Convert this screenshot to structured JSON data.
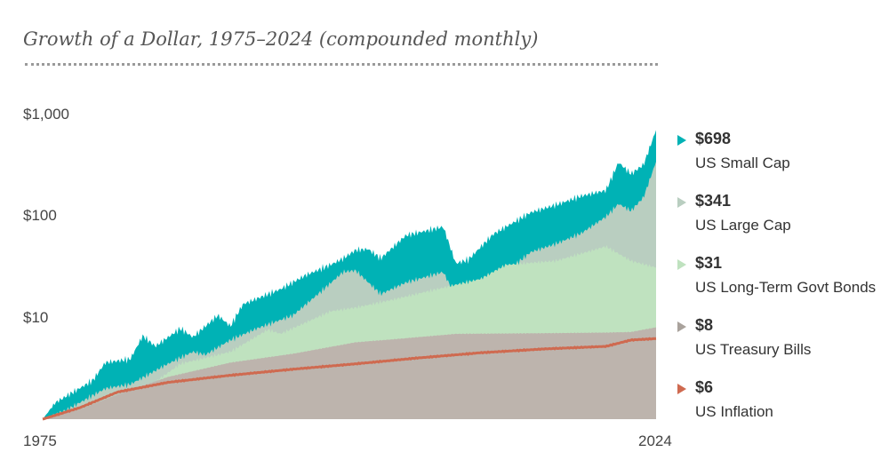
{
  "chart_data": {
    "type": "area",
    "title": "Growth of a Dollar, 1975–2024 (compounded monthly)",
    "x_start_label": "1975",
    "x_end_label": "2024",
    "x_range": [
      1975,
      2024
    ],
    "y_scale": "log",
    "ylim": [
      1,
      1000
    ],
    "y_tick_labels": [
      "$1,000",
      "$100",
      "$10"
    ],
    "y_tick_values": [
      1000,
      100,
      10
    ],
    "series": [
      {
        "name": "US Small Cap",
        "final_label": "$698",
        "final_value": 698,
        "color": "#00b2b5",
        "points": [
          [
            1975,
            1
          ],
          [
            1976,
            1.45
          ],
          [
            1979,
            2.4
          ],
          [
            1980,
            3.6
          ],
          [
            1982,
            3.9
          ],
          [
            1983,
            6.6
          ],
          [
            1984,
            5.2
          ],
          [
            1986,
            7.8
          ],
          [
            1987,
            6.4
          ],
          [
            1989,
            10.5
          ],
          [
            1990,
            8.2
          ],
          [
            1991,
            13.5
          ],
          [
            1994,
            19
          ],
          [
            1996,
            26
          ],
          [
            1998,
            33
          ],
          [
            1999,
            38
          ],
          [
            2000,
            46
          ],
          [
            2001,
            47
          ],
          [
            2002,
            38
          ],
          [
            2004,
            64
          ],
          [
            2007,
            78
          ],
          [
            2008,
            34
          ],
          [
            2009,
            37
          ],
          [
            2011,
            66
          ],
          [
            2014,
            108
          ],
          [
            2016,
            128
          ],
          [
            2018,
            156
          ],
          [
            2020,
            178
          ],
          [
            2021,
            335
          ],
          [
            2022,
            258
          ],
          [
            2023,
            318
          ],
          [
            2024,
            698
          ]
        ]
      },
      {
        "name": "US Large Cap",
        "final_label": "$341",
        "final_value": 341,
        "color": "#b9cec0",
        "points": [
          [
            1975,
            1
          ],
          [
            1977,
            1.25
          ],
          [
            1980,
            2
          ],
          [
            1982,
            2.2
          ],
          [
            1985,
            3.5
          ],
          [
            1987,
            4.6
          ],
          [
            1988,
            4.3
          ],
          [
            1990,
            6
          ],
          [
            1992,
            7.7
          ],
          [
            1995,
            10.5
          ],
          [
            1997,
            17
          ],
          [
            1999,
            28
          ],
          [
            2000,
            29
          ],
          [
            2002,
            17
          ],
          [
            2004,
            22
          ],
          [
            2007,
            28
          ],
          [
            2008,
            16
          ],
          [
            2009,
            20
          ],
          [
            2012,
            28
          ],
          [
            2014,
            44
          ],
          [
            2016,
            53
          ],
          [
            2018,
            67
          ],
          [
            2020,
            98
          ],
          [
            2021,
            131
          ],
          [
            2022,
            112
          ],
          [
            2023,
            152
          ],
          [
            2024,
            341
          ]
        ]
      },
      {
        "name": "US Long-Term Govt Bonds",
        "final_label": "$31",
        "final_value": 31,
        "color": "#bfe2bf",
        "points": [
          [
            1975,
            1
          ],
          [
            1978,
            1.15
          ],
          [
            1981,
            1.35
          ],
          [
            1983,
            1.9
          ],
          [
            1986,
            3.5
          ],
          [
            1990,
            4.6
          ],
          [
            1993,
            7.6
          ],
          [
            1994,
            6.9
          ],
          [
            1998,
            11.5
          ],
          [
            2000,
            12.5
          ],
          [
            2003,
            15
          ],
          [
            2008,
            21
          ],
          [
            2010,
            24
          ],
          [
            2012,
            33
          ],
          [
            2016,
            36
          ],
          [
            2020,
            50
          ],
          [
            2022,
            36
          ],
          [
            2024,
            31
          ]
        ]
      },
      {
        "name": "US Treasury Bills",
        "final_label": "$8",
        "final_value": 8,
        "color": "#bdb4ad",
        "points": [
          [
            1975,
            1
          ],
          [
            1978,
            1.25
          ],
          [
            1981,
            1.75
          ],
          [
            1985,
            2.6
          ],
          [
            1990,
            3.6
          ],
          [
            1995,
            4.4
          ],
          [
            2000,
            5.7
          ],
          [
            2003,
            6.1
          ],
          [
            2008,
            6.9
          ],
          [
            2015,
            7
          ],
          [
            2020,
            7.1
          ],
          [
            2022,
            7.2
          ],
          [
            2024,
            8
          ]
        ]
      },
      {
        "name": "US Inflation",
        "final_label": "$6",
        "final_value": 6,
        "color": "#cf6a50",
        "points": [
          [
            1975,
            1
          ],
          [
            1978,
            1.3
          ],
          [
            1981,
            1.85
          ],
          [
            1985,
            2.3
          ],
          [
            1990,
            2.7
          ],
          [
            1995,
            3.1
          ],
          [
            2000,
            3.5
          ],
          [
            2005,
            4
          ],
          [
            2010,
            4.5
          ],
          [
            2015,
            4.9
          ],
          [
            2020,
            5.2
          ],
          [
            2022,
            6
          ],
          [
            2024,
            6.2
          ]
        ]
      }
    ]
  }
}
